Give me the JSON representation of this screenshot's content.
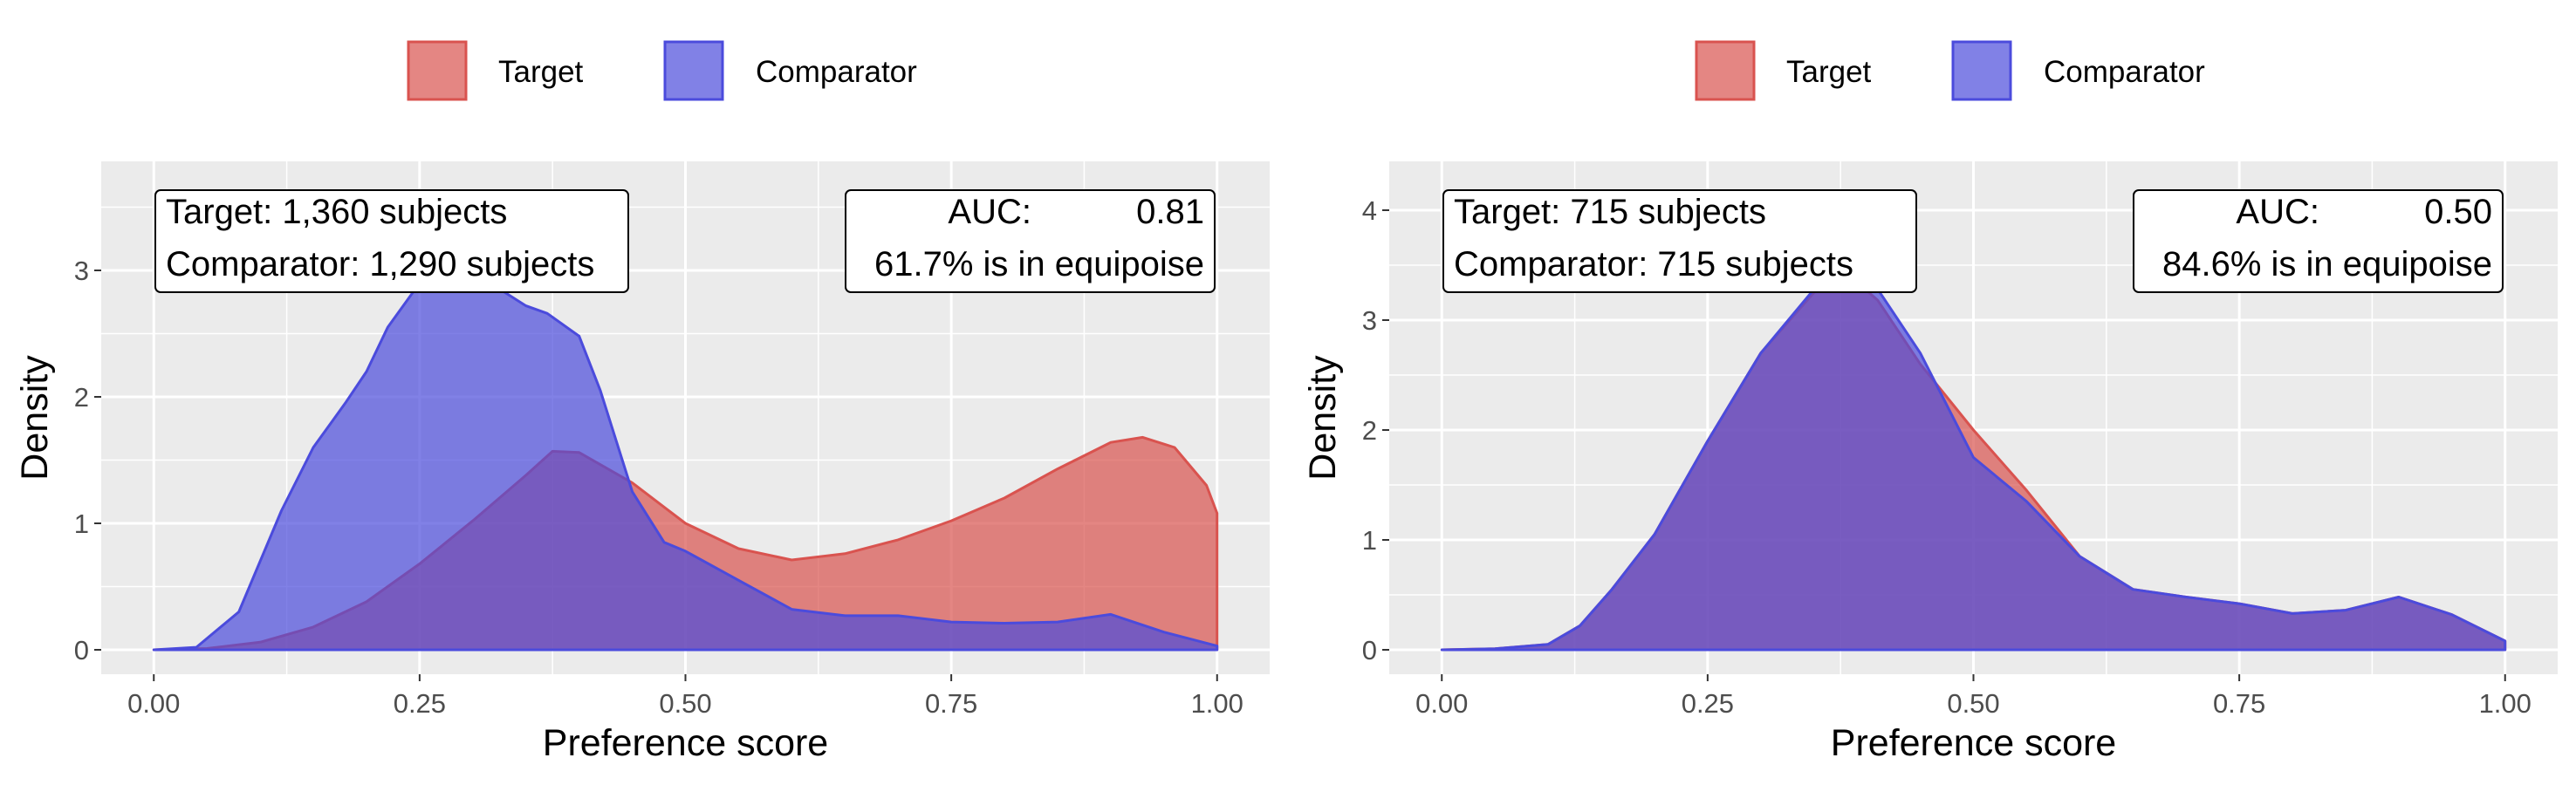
{
  "chart_data": [
    {
      "type": "area",
      "xlabel": "Preference score",
      "ylabel": "Density",
      "xlim": [
        0,
        1
      ],
      "ylim": [
        0,
        3.85
      ],
      "x_ticks": [
        "0.00",
        "0.25",
        "0.50",
        "0.75",
        "1.00"
      ],
      "y_ticks": [
        "0",
        "1",
        "2",
        "3"
      ],
      "grid": true,
      "legend_position": "top",
      "annotation_left": [
        "Target: 1,360 subjects",
        "Comparator: 1,290 subjects"
      ],
      "annotation_right": {
        "auc_label": "AUC:",
        "auc_value": "0.81",
        "equipoise": "61.7% is in equipoise"
      },
      "series": [
        {
          "name": "Target",
          "color": "#d9534f",
          "x": [
            0.0,
            0.05,
            0.1,
            0.15,
            0.2,
            0.25,
            0.3,
            0.35,
            0.375,
            0.4,
            0.45,
            0.5,
            0.55,
            0.6,
            0.65,
            0.7,
            0.75,
            0.8,
            0.85,
            0.9,
            0.93,
            0.96,
            0.99,
            1.0
          ],
          "values": [
            0.0,
            0.01,
            0.06,
            0.18,
            0.38,
            0.68,
            1.02,
            1.38,
            1.57,
            1.56,
            1.32,
            1.0,
            0.8,
            0.71,
            0.76,
            0.87,
            1.02,
            1.2,
            1.43,
            1.64,
            1.68,
            1.6,
            1.3,
            1.08
          ]
        },
        {
          "name": "Comparator",
          "color": "#4b4bdc",
          "x": [
            0.0,
            0.04,
            0.08,
            0.12,
            0.15,
            0.18,
            0.2,
            0.22,
            0.25,
            0.28,
            0.32,
            0.35,
            0.37,
            0.4,
            0.42,
            0.45,
            0.48,
            0.5,
            0.55,
            0.6,
            0.65,
            0.7,
            0.75,
            0.8,
            0.85,
            0.9,
            0.95,
            1.0
          ],
          "values": [
            0.0,
            0.02,
            0.3,
            1.1,
            1.6,
            1.95,
            2.2,
            2.55,
            2.9,
            2.95,
            2.88,
            2.72,
            2.66,
            2.48,
            2.05,
            1.25,
            0.85,
            0.78,
            0.55,
            0.32,
            0.27,
            0.27,
            0.22,
            0.21,
            0.22,
            0.28,
            0.14,
            0.03
          ]
        }
      ]
    },
    {
      "type": "area",
      "xlabel": "Preference score",
      "ylabel": "Density",
      "xlim": [
        0,
        1
      ],
      "ylim": [
        0,
        4.4
      ],
      "x_ticks": [
        "0.00",
        "0.25",
        "0.50",
        "0.75",
        "1.00"
      ],
      "y_ticks": [
        "0",
        "1",
        "2",
        "3",
        "4"
      ],
      "grid": true,
      "legend_position": "top",
      "annotation_left": [
        "Target: 715 subjects",
        "Comparator: 715 subjects"
      ],
      "annotation_right": {
        "auc_label": "AUC:",
        "auc_value": "0.50",
        "equipoise": "84.6% is in equipoise"
      },
      "series": [
        {
          "name": "Target",
          "color": "#d9534f",
          "x": [
            0.0,
            0.05,
            0.1,
            0.13,
            0.16,
            0.2,
            0.25,
            0.3,
            0.35,
            0.37,
            0.39,
            0.41,
            0.45,
            0.5,
            0.55,
            0.6,
            0.65,
            0.7,
            0.75,
            0.8,
            0.85,
            0.9,
            0.95,
            1.0
          ],
          "values": [
            0.0,
            0.01,
            0.05,
            0.22,
            0.55,
            1.05,
            1.9,
            2.7,
            3.25,
            3.38,
            3.35,
            3.18,
            2.6,
            2.0,
            1.45,
            0.85,
            0.55,
            0.48,
            0.42,
            0.33,
            0.36,
            0.48,
            0.32,
            0.08
          ]
        },
        {
          "name": "Comparator",
          "color": "#4b4bdc",
          "x": [
            0.0,
            0.05,
            0.1,
            0.13,
            0.16,
            0.2,
            0.25,
            0.3,
            0.35,
            0.37,
            0.39,
            0.41,
            0.45,
            0.5,
            0.55,
            0.6,
            0.65,
            0.7,
            0.75,
            0.8,
            0.85,
            0.9,
            0.95,
            1.0
          ],
          "values": [
            0.0,
            0.01,
            0.05,
            0.22,
            0.55,
            1.05,
            1.9,
            2.7,
            3.28,
            3.42,
            3.4,
            3.28,
            2.7,
            1.75,
            1.35,
            0.85,
            0.55,
            0.48,
            0.42,
            0.33,
            0.36,
            0.48,
            0.32,
            0.08
          ]
        }
      ]
    }
  ]
}
